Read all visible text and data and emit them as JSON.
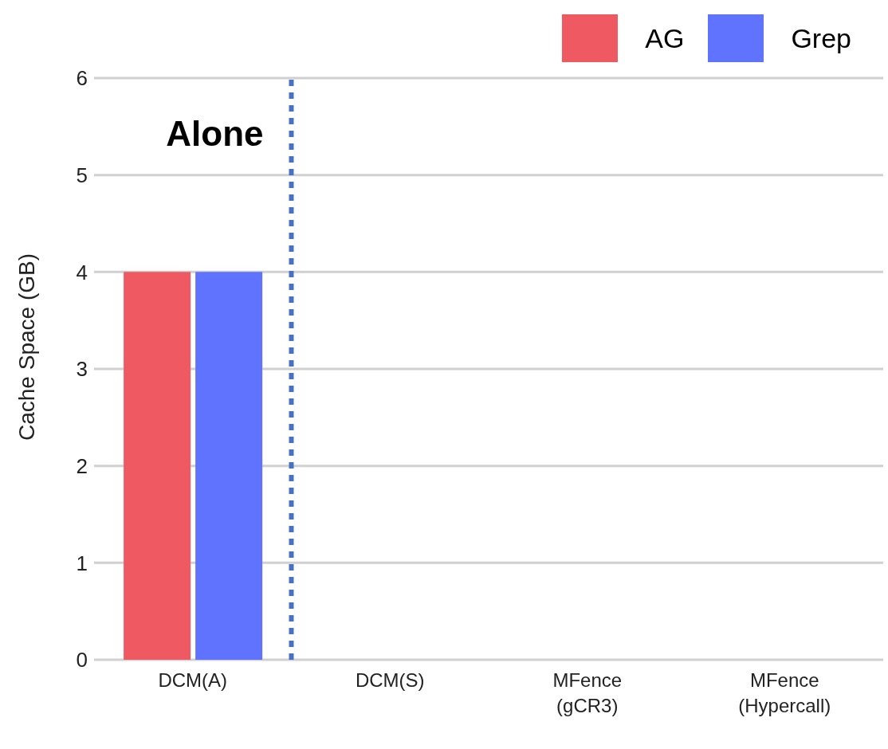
{
  "chart_data": {
    "type": "bar",
    "ylabel": "Cache Space (GB)",
    "categories": [
      "DCM(A)",
      "DCM(S)",
      "MFence (gCR3)",
      "MFence (Hypercall)"
    ],
    "series": [
      {
        "name": "AG",
        "color": "#ef5a62",
        "values": [
          4,
          0,
          0,
          0
        ]
      },
      {
        "name": "Grep",
        "color": "#5f73ff",
        "values": [
          4,
          0,
          0,
          0
        ]
      }
    ],
    "ylim": [
      0,
      6
    ],
    "yticks": [
      0,
      1,
      2,
      3,
      4,
      5,
      6
    ],
    "grid": "y",
    "legend": "top right",
    "ref_lines": [
      {
        "axis": "x",
        "value": "DCM(A)",
        "label": "Alone",
        "color": "#4472c4",
        "line_style": "dashed"
      }
    ]
  }
}
